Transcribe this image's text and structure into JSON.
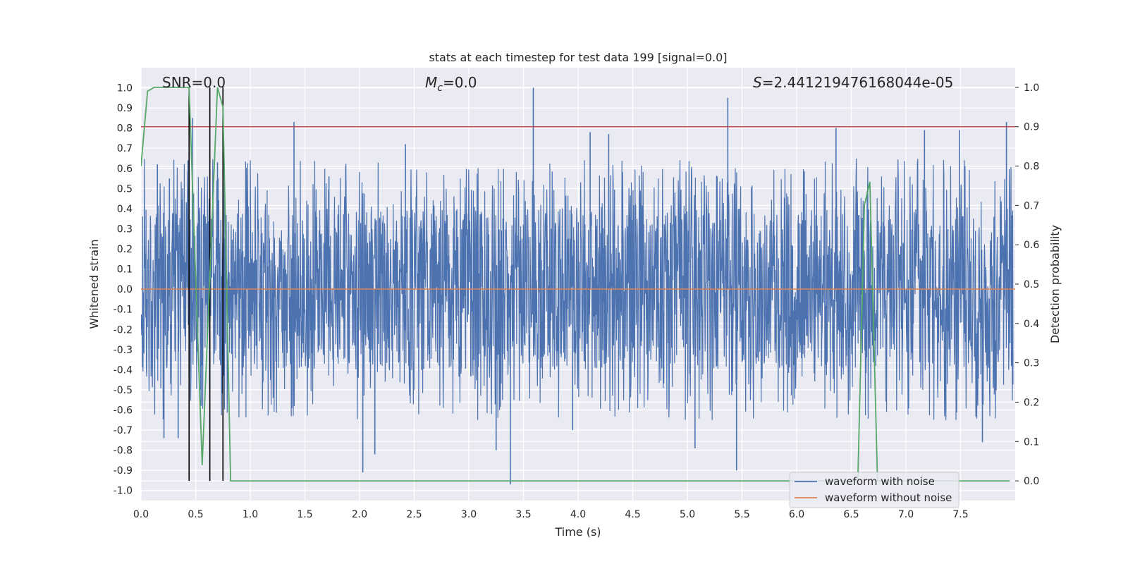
{
  "chart_data": {
    "type": "line",
    "title": "stats at each timestep for test data 199 [signal=0.0]",
    "xlabel": "Time (s)",
    "ylabel": "Whitened strain",
    "y2label": "Detection probability",
    "xlim": [
      0.0,
      8.0
    ],
    "ylim": [
      -1.05,
      1.1
    ],
    "y2lim": [
      -0.05,
      1.05
    ],
    "x_ticks": [
      "0.0",
      "0.5",
      "1.0",
      "1.5",
      "2.0",
      "2.5",
      "3.0",
      "3.5",
      "4.0",
      "4.5",
      "5.0",
      "5.5",
      "6.0",
      "6.5",
      "7.0",
      "7.5"
    ],
    "y_ticks": [
      "-1.0",
      "-0.9",
      "-0.8",
      "-0.7",
      "-0.6",
      "-0.5",
      "-0.4",
      "-0.3",
      "-0.2",
      "-0.1",
      "0.0",
      "0.1",
      "0.2",
      "0.3",
      "0.4",
      "0.5",
      "0.6",
      "0.7",
      "0.8",
      "0.9",
      "1.0"
    ],
    "y2_ticks": [
      "0.0",
      "0.1",
      "0.2",
      "0.3",
      "0.4",
      "0.5",
      "0.6",
      "0.7",
      "0.8",
      "0.9",
      "1.0"
    ],
    "grid": true,
    "legend_position": "lower-right",
    "annotations": {
      "snr": "SNR=0.0",
      "mc": "=0.0",
      "mc_symbol": "M",
      "mc_subscript": "c",
      "s_symbol": "S",
      "s": "=2.441219476168044e-05"
    },
    "series": [
      {
        "name": "waveform with noise",
        "color": "#4c72b0",
        "noise_envelope": 0.4,
        "spikes": [
          [
            0.15,
            0.62
          ],
          [
            0.21,
            -0.74
          ],
          [
            0.26,
            0.55
          ],
          [
            0.34,
            -0.74
          ],
          [
            0.43,
            0.64
          ],
          [
            0.47,
            0.85
          ],
          [
            0.55,
            -0.58
          ],
          [
            0.63,
            -0.49
          ],
          [
            0.7,
            0.63
          ],
          [
            1.4,
            0.83
          ],
          [
            1.72,
            0.56
          ],
          [
            2.03,
            -0.91
          ],
          [
            2.14,
            -0.82
          ],
          [
            2.42,
            0.72
          ],
          [
            3.25,
            -0.8
          ],
          [
            3.38,
            -0.97
          ],
          [
            3.59,
            1.0
          ],
          [
            3.95,
            -0.7
          ],
          [
            4.11,
            0.78
          ],
          [
            4.28,
            0.77
          ],
          [
            5.07,
            -0.79
          ],
          [
            5.37,
            0.95
          ],
          [
            5.45,
            -0.9
          ],
          [
            6.36,
            0.8
          ],
          [
            7.17,
            0.79
          ],
          [
            7.49,
            0.79
          ],
          [
            7.7,
            -0.76
          ],
          [
            7.92,
            0.83
          ]
        ]
      },
      {
        "name": "waveform without noise",
        "color": "#dd8452",
        "constant": 0.0
      }
    ],
    "detection_probability": {
      "color": "#55a868",
      "points": [
        [
          0.0,
          0.8
        ],
        [
          0.06,
          0.99
        ],
        [
          0.12,
          1.0
        ],
        [
          0.44,
          1.0
        ],
        [
          0.56,
          0.04
        ],
        [
          0.7,
          1.0
        ],
        [
          0.75,
          0.95
        ],
        [
          0.82,
          0.0
        ],
        [
          0.9,
          0.0
        ],
        [
          6.56,
          0.0
        ],
        [
          6.62,
          0.7
        ],
        [
          6.67,
          0.76
        ],
        [
          6.74,
          0.0
        ],
        [
          7.95,
          0.0
        ]
      ]
    },
    "threshold": {
      "value": 0.9,
      "color": "#c44e52"
    },
    "event_markers": {
      "x": [
        0.44,
        0.63,
        0.75
      ],
      "color": "#000000"
    }
  }
}
